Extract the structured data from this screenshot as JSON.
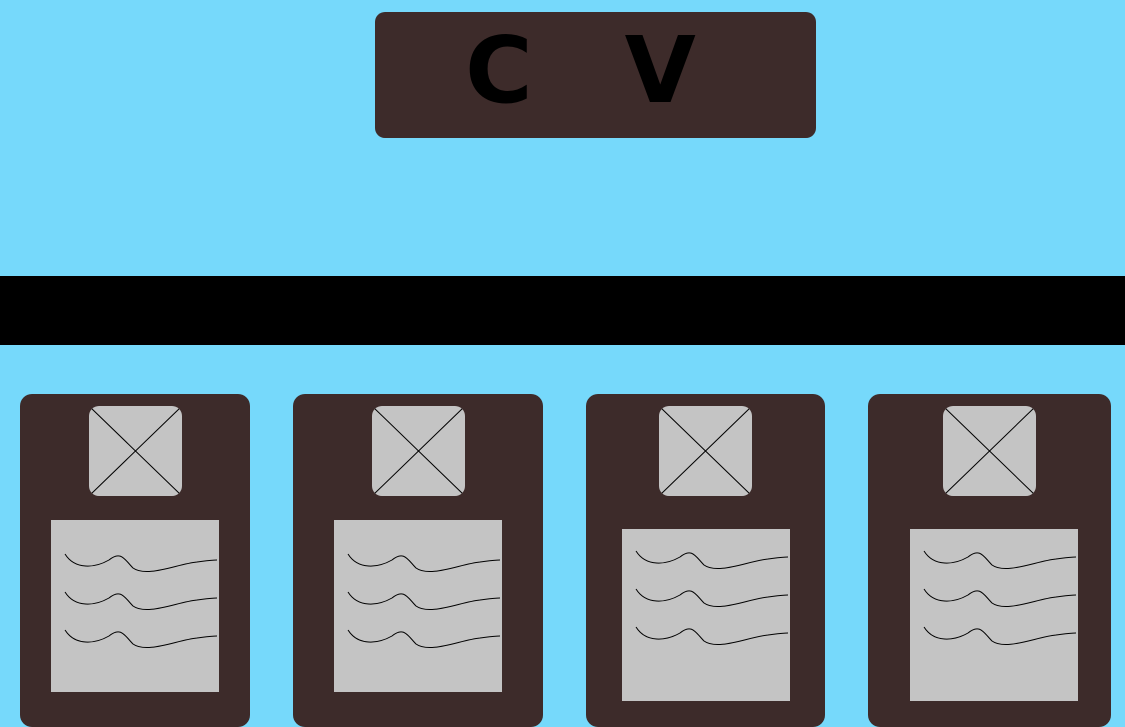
{
  "header": {
    "title": "C V"
  },
  "colors": {
    "background": "#76d9fb",
    "panel": "#3d2b2a",
    "placeholder": "#c4c4c4",
    "ink": "#000000"
  },
  "icons": {
    "image_placeholder": "image-placeholder-icon",
    "text_placeholder": "text-lines-icon"
  },
  "cards": [
    {
      "id": "card-1"
    },
    {
      "id": "card-2"
    },
    {
      "id": "card-3"
    },
    {
      "id": "card-4"
    }
  ]
}
